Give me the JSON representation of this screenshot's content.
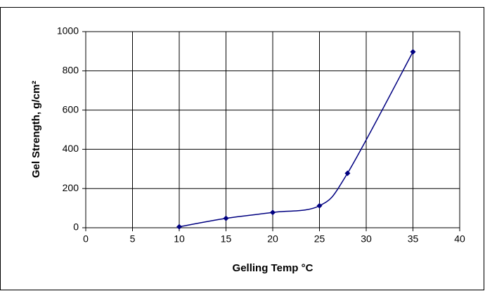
{
  "chart_data": {
    "type": "scatter",
    "smooth": true,
    "xlabel": "Gelling Temp °C",
    "ylabel": "Gel Strength, g/cm²",
    "x": [
      10,
      15,
      20,
      25,
      28,
      35
    ],
    "series": [
      {
        "color": "#000080",
        "values": [
          5,
          48,
          78,
          112,
          278,
          897
        ]
      }
    ],
    "xlim": [
      0,
      40
    ],
    "xticks": [
      0,
      5,
      10,
      15,
      20,
      25,
      30,
      35,
      40
    ],
    "ylim": [
      0,
      1000
    ],
    "yticks": [
      0,
      200,
      400,
      600,
      800,
      1000
    ],
    "grid": true
  }
}
